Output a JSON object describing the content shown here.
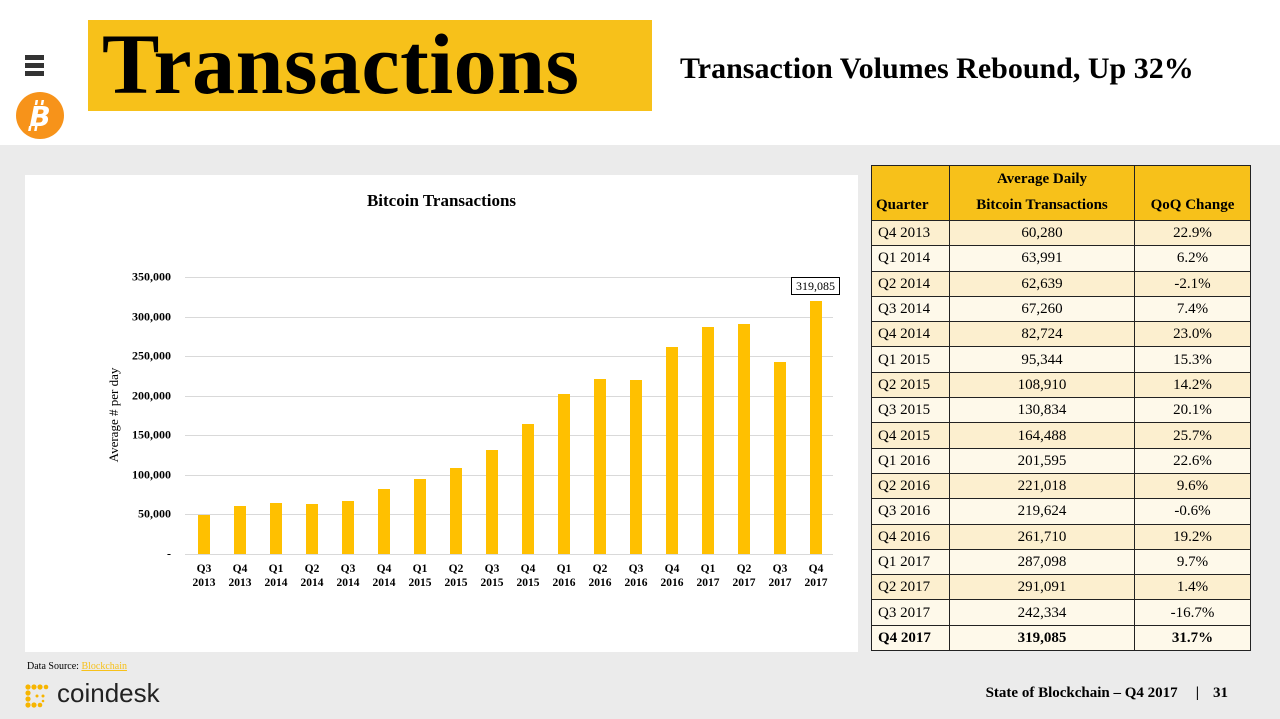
{
  "header": {
    "menu_icon": "hamburger-icon",
    "logo_icon": "bitcoin-icon",
    "title": "Transactions",
    "subtitle": "Transaction Volumes Rebound, Up 32%",
    "accent_color": "#f7c11a"
  },
  "chart_data": {
    "type": "bar",
    "title": "Bitcoin Transactions",
    "xlabel": "",
    "ylabel": "Average # per day",
    "ylim": [
      0,
      350000
    ],
    "yticks": [
      "-",
      "50,000",
      "100,000",
      "150,000",
      "200,000",
      "250,000",
      "300,000",
      "350,000"
    ],
    "grid": true,
    "bar_color": "#ffc000",
    "categories": [
      "Q3 2013",
      "Q4 2013",
      "Q1 2014",
      "Q2 2014",
      "Q3 2014",
      "Q4 2014",
      "Q1 2015",
      "Q2 2015",
      "Q3 2015",
      "Q4 2015",
      "Q1 2016",
      "Q2 2016",
      "Q3 2016",
      "Q4 2016",
      "Q1 2017",
      "Q2 2017",
      "Q3 2017",
      "Q4 2017"
    ],
    "xtick_lines": [
      [
        "Q3",
        "2013"
      ],
      [
        "Q4",
        "2013"
      ],
      [
        "Q1",
        "2014"
      ],
      [
        "Q2",
        "2014"
      ],
      [
        "Q3",
        "2014"
      ],
      [
        "Q4",
        "2014"
      ],
      [
        "Q1",
        "2015"
      ],
      [
        "Q2",
        "2015"
      ],
      [
        "Q3",
        "2015"
      ],
      [
        "Q4",
        "2015"
      ],
      [
        "Q1",
        "2016"
      ],
      [
        "Q2",
        "2016"
      ],
      [
        "Q3",
        "2016"
      ],
      [
        "Q4",
        "2016"
      ],
      [
        "Q1",
        "2017"
      ],
      [
        "Q2",
        "2017"
      ],
      [
        "Q3",
        "2017"
      ],
      [
        "Q4",
        "2017"
      ]
    ],
    "values": [
      49050,
      60280,
      63991,
      62639,
      67260,
      82724,
      95344,
      108910,
      130834,
      164488,
      201595,
      221018,
      219624,
      261710,
      287098,
      291091,
      242334,
      319085
    ],
    "annotations": [
      {
        "category": "Q4 2017",
        "label": "319,085"
      }
    ]
  },
  "table": {
    "headers": [
      "Quarter",
      "Average Daily Bitcoin Transactions",
      "QoQ Change"
    ],
    "header_line1": [
      "",
      "Average Daily",
      ""
    ],
    "header_line2": [
      "Quarter",
      "Bitcoin Transactions",
      "QoQ Change"
    ],
    "rows": [
      [
        "Q4 2013",
        "60,280",
        "22.9%"
      ],
      [
        "Q1 2014",
        "63,991",
        "6.2%"
      ],
      [
        "Q2 2014",
        "62,639",
        "-2.1%"
      ],
      [
        "Q3 2014",
        "67,260",
        "7.4%"
      ],
      [
        "Q4 2014",
        "82,724",
        "23.0%"
      ],
      [
        "Q1 2015",
        "95,344",
        "15.3%"
      ],
      [
        "Q2 2015",
        "108,910",
        "14.2%"
      ],
      [
        "Q3 2015",
        "130,834",
        "20.1%"
      ],
      [
        "Q4 2015",
        "164,488",
        "25.7%"
      ],
      [
        "Q1 2016",
        "201,595",
        "22.6%"
      ],
      [
        "Q2 2016",
        "221,018",
        "9.6%"
      ],
      [
        "Q3 2016",
        "219,624",
        "-0.6%"
      ],
      [
        "Q4 2016",
        "261,710",
        "19.2%"
      ],
      [
        "Q1 2017",
        "287,098",
        "9.7%"
      ],
      [
        "Q2 2017",
        "291,091",
        "1.4%"
      ],
      [
        "Q3 2017",
        "242,334",
        "-16.7%"
      ],
      [
        "Q4 2017",
        "319,085",
        "31.7%"
      ]
    ],
    "highlight_last_row": true
  },
  "footer": {
    "source_label": "Data Source:",
    "source_link": "Blockchain",
    "brand": "coindesk",
    "report": "State of Blockchain – Q4 2017",
    "separator": "|",
    "page_number": "31"
  }
}
